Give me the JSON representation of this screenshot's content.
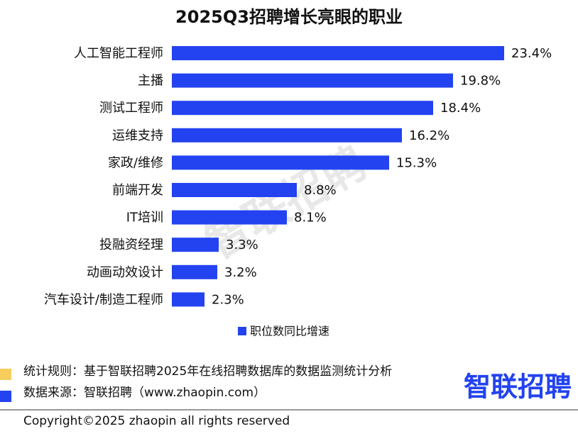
{
  "chart_data": {
    "type": "hbar",
    "title": "2025Q3招聘增长亮眼的职业",
    "categories": [
      "人工智能工程师",
      "主播",
      "测试工程师",
      "运维支持",
      "家政/维修",
      "前端开发",
      "IT培训",
      "投融资经理",
      "动画动效设计",
      "汽车设计/制造工程师"
    ],
    "series": [
      {
        "name": "职位数同比增速",
        "color": "#2343f0",
        "values": [
          23.4,
          19.8,
          18.4,
          16.2,
          15.3,
          8.8,
          8.1,
          3.3,
          3.2,
          2.3
        ],
        "value_labels": [
          "23.4%",
          "19.8%",
          "18.4%",
          "16.2%",
          "15.3%",
          "8.8%",
          "8.1%",
          "3.3%",
          "3.2%",
          "2.3%"
        ]
      }
    ],
    "xlim": [
      0,
      25
    ]
  },
  "watermark": "智联招聘",
  "footnotes": [
    "统计规则：基于智联招聘2025年在线招聘数据库的数据监测统计分析",
    "数据来源：智联招聘（www.zhaopin.com）"
  ],
  "logo": "智联招聘",
  "copyright": "Copyright©2025 zhaopin all rights reserved"
}
